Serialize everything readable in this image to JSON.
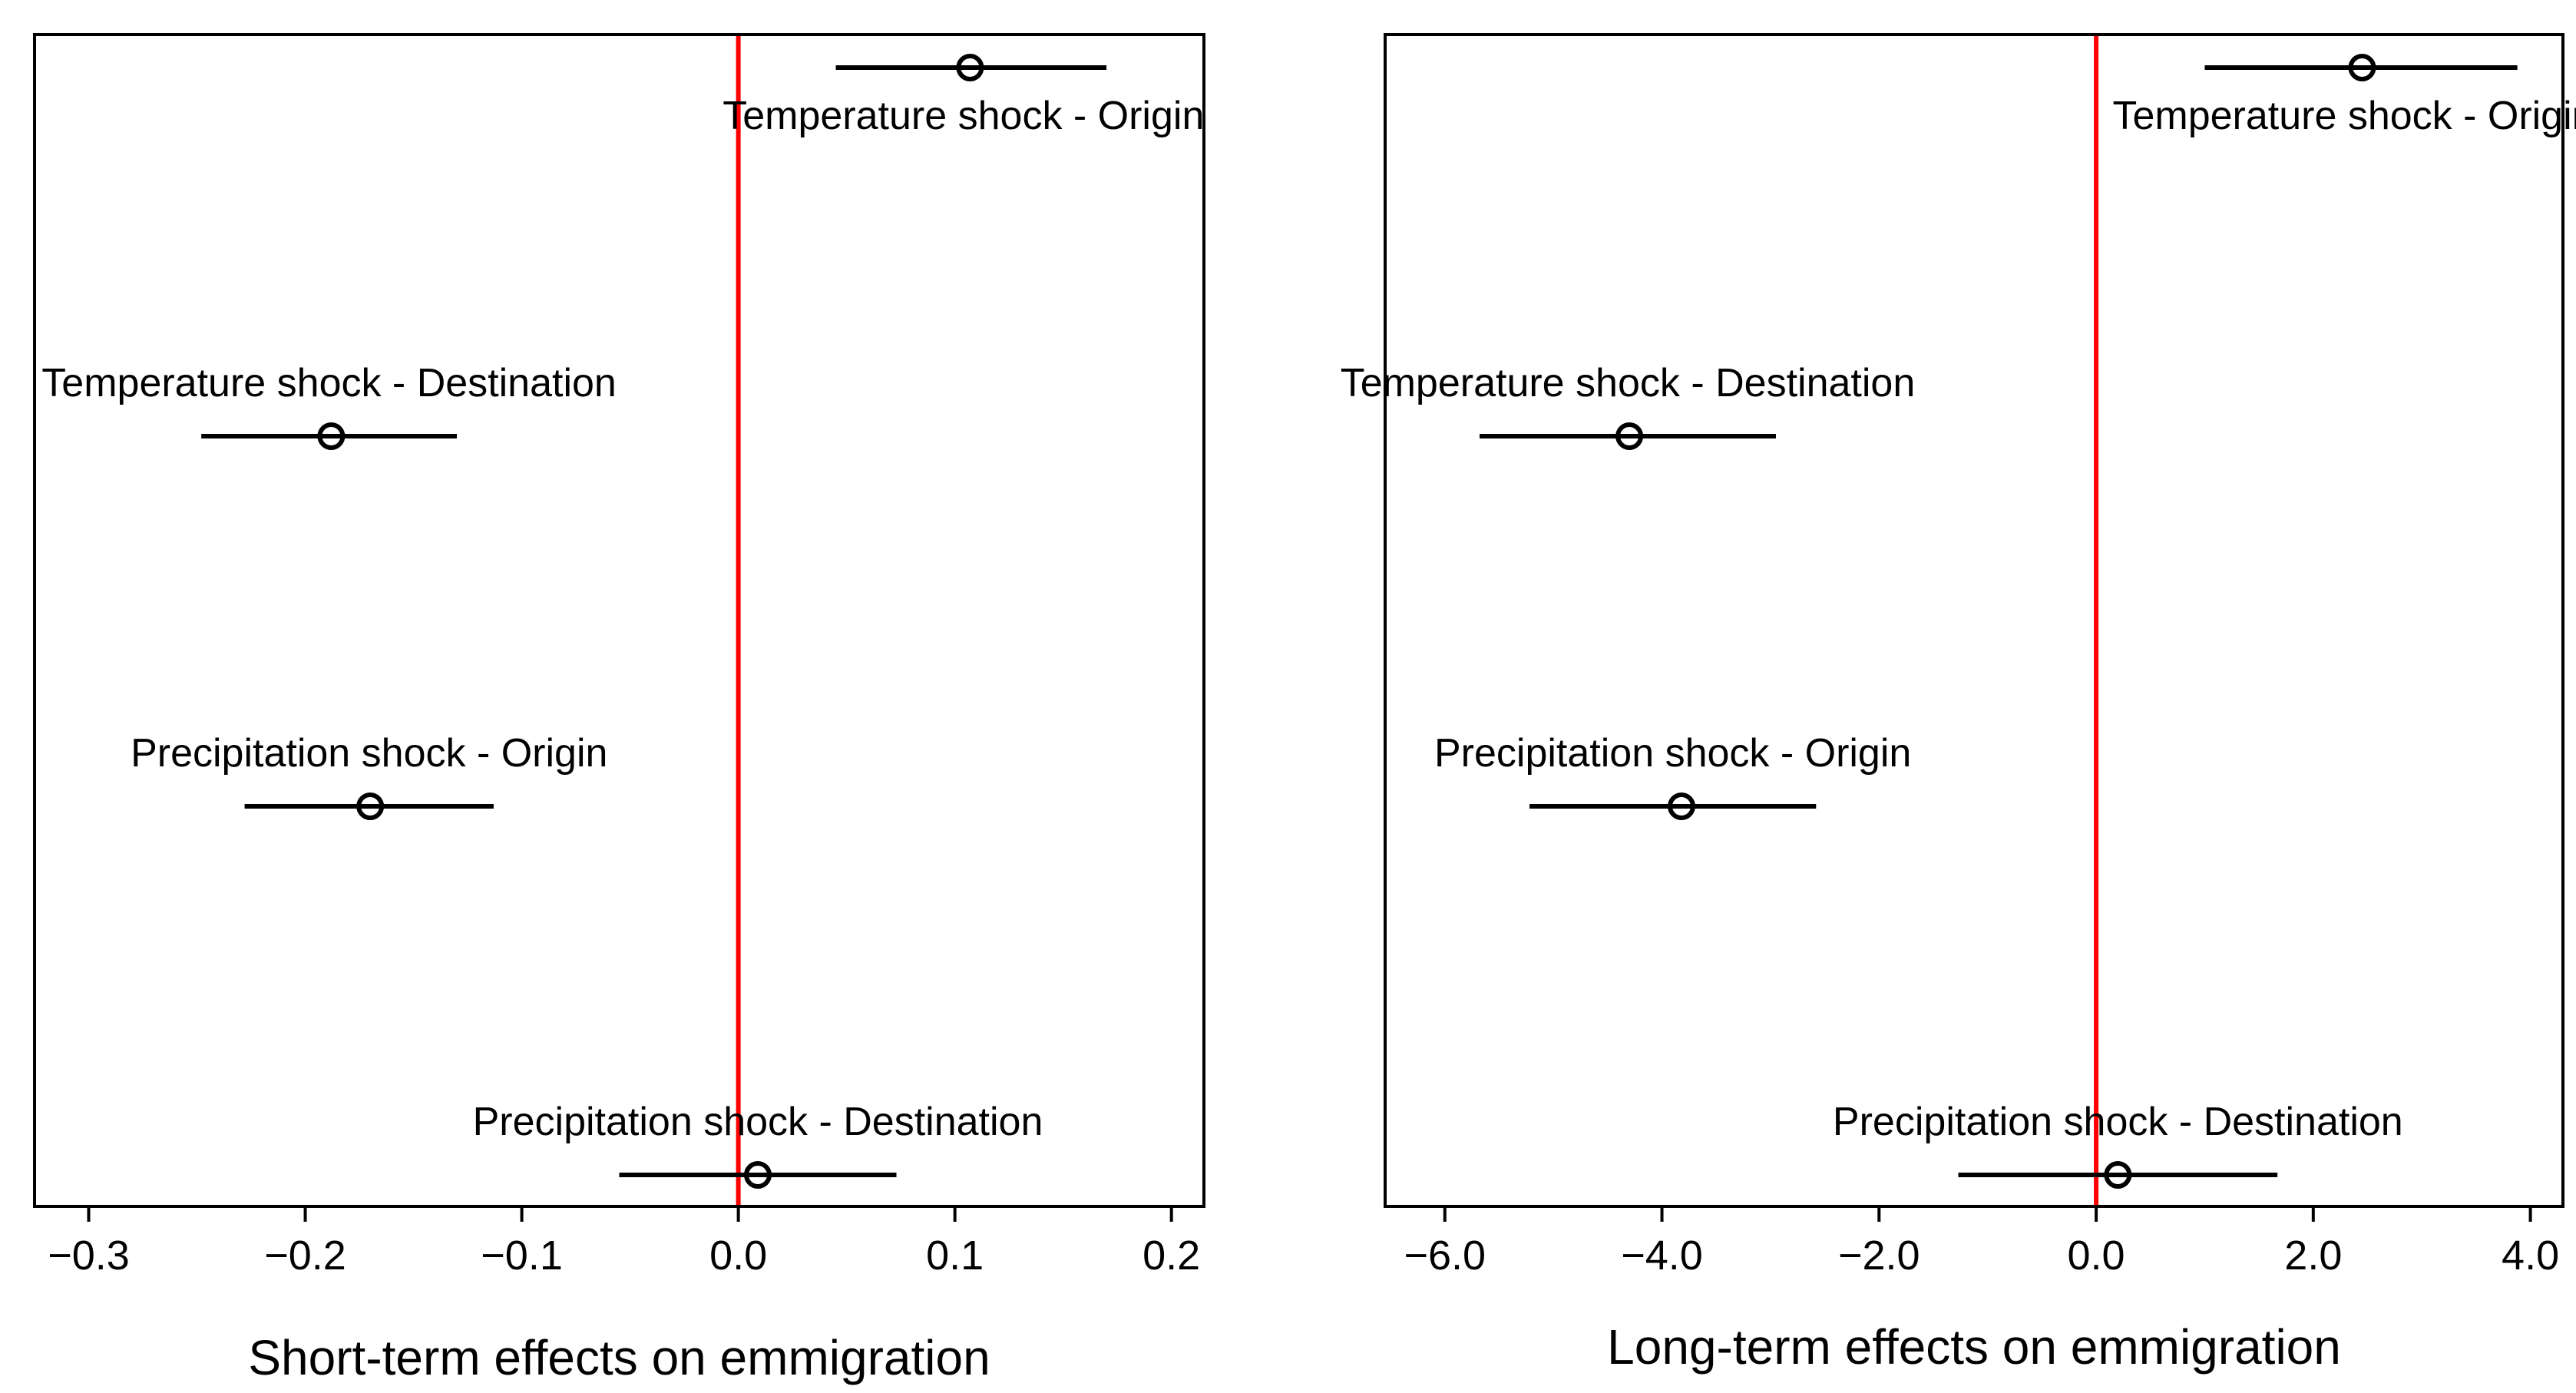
{
  "colors": {
    "reference_line": "#ff0000",
    "marks": "#000000",
    "background": "#ffffff"
  },
  "chart_data": [
    {
      "type": "scatter",
      "title": "",
      "xlabel": "Short-term effects on emmigration",
      "ylabel": "",
      "xlim": [
        -0.325,
        0.215
      ],
      "xticks": [
        -0.3,
        -0.2,
        -0.1,
        0.0,
        0.1,
        0.2
      ],
      "xtick_labels": [
        "−0.3",
        "−0.2",
        "−0.1",
        "0.0",
        "0.1",
        "0.2"
      ],
      "reference_x": 0.0,
      "grid": false,
      "points": [
        {
          "label": "Temperature shock - Origin",
          "estimate": 0.107,
          "ci_low": 0.045,
          "ci_high": 0.17,
          "label_position": "below"
        },
        {
          "label": "Temperature shock - Destination",
          "estimate": -0.188,
          "ci_low": -0.248,
          "ci_high": -0.13,
          "label_position": "above"
        },
        {
          "label": "Precipitation shock - Origin",
          "estimate": -0.17,
          "ci_low": -0.228,
          "ci_high": -0.113,
          "label_position": "above"
        },
        {
          "label": "Precipitation shock - Destination",
          "estimate": 0.009,
          "ci_low": -0.055,
          "ci_high": 0.073,
          "label_position": "above"
        }
      ]
    },
    {
      "type": "scatter",
      "title": "",
      "xlabel": "Long-term effects on emmigration",
      "ylabel": "",
      "xlim": [
        -6.55,
        4.3
      ],
      "xticks": [
        -6.0,
        -4.0,
        -2.0,
        0.0,
        2.0,
        4.0
      ],
      "xtick_labels": [
        "−6.0",
        "−4.0",
        "−2.0",
        "0.0",
        "2.0",
        "4.0"
      ],
      "reference_x": 0.0,
      "grid": false,
      "points": [
        {
          "label": "Temperature shock - Origin",
          "estimate": 2.45,
          "ci_low": 1.0,
          "ci_high": 3.88,
          "label_position": "below"
        },
        {
          "label": "Temperature shock - Destination",
          "estimate": -4.3,
          "ci_low": -5.68,
          "ci_high": -2.95,
          "label_position": "above"
        },
        {
          "label": "Precipitation shock - Origin",
          "estimate": -3.82,
          "ci_low": -5.22,
          "ci_high": -2.58,
          "label_position": "above"
        },
        {
          "label": "Precipitation shock - Destination",
          "estimate": 0.2,
          "ci_low": -1.27,
          "ci_high": 1.67,
          "label_position": "above"
        }
      ]
    }
  ]
}
